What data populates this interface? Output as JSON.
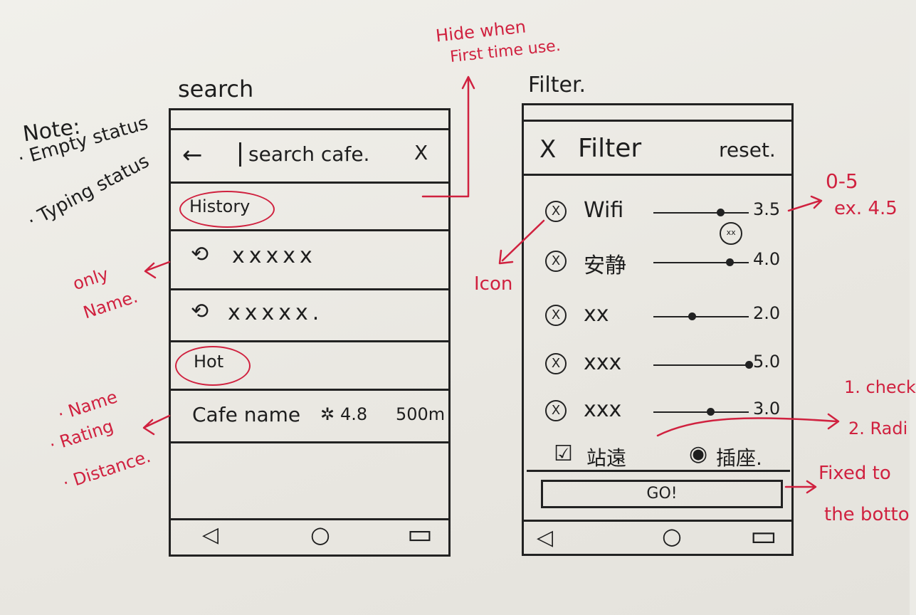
{
  "notes": {
    "title": "Note:",
    "items": [
      "· Empty status",
      "· Typing status"
    ]
  },
  "search_screen": {
    "heading": "search",
    "back_glyph": "←",
    "search_placeholder": "search cafe.",
    "close_glyph": "X",
    "history_label": "History",
    "history_items": [
      "xxxxx",
      "xxxxx."
    ],
    "hot_label": "Hot",
    "hot_item": {
      "name": "Cafe name",
      "rating": "4.8",
      "distance": "500m"
    }
  },
  "filter_screen": {
    "heading": "Filter.",
    "close_glyph": "X",
    "title": "Filter",
    "reset_label": "reset.",
    "filters": [
      {
        "label": "Wifi",
        "value": "3.5",
        "level": 3.5
      },
      {
        "label": "安静",
        "value": "4.0",
        "level": 4.0,
        "bubble": "xx"
      },
      {
        "label": "xx",
        "value": "2.0",
        "level": 2.0
      },
      {
        "label": "xxx",
        "value": "5.0",
        "level": 5.0
      },
      {
        "label": "xxx",
        "value": "3.0",
        "level": 3.0
      }
    ],
    "checkbox_label": "站遠",
    "radio_label": "插座.",
    "go_label": "GO!"
  },
  "annotations": {
    "hide_when": "Hide when",
    "first_time": "First time use.",
    "only": "only",
    "name": "Name.",
    "icon": "Icon",
    "range": "0-5",
    "range_example": "ex. 4.5",
    "bullets": [
      "· Name",
      "· Rating",
      "· Distance."
    ],
    "check": "1. check",
    "radio": "2. Radi",
    "fixed": "Fixed to",
    "bottom": "the botto"
  },
  "nav": {
    "back": "◁",
    "home": "○",
    "recent": "▭"
  },
  "colors": {
    "ink": "#1e1e1e",
    "annotation": "#d0213f",
    "paper": "#ecebe6"
  }
}
